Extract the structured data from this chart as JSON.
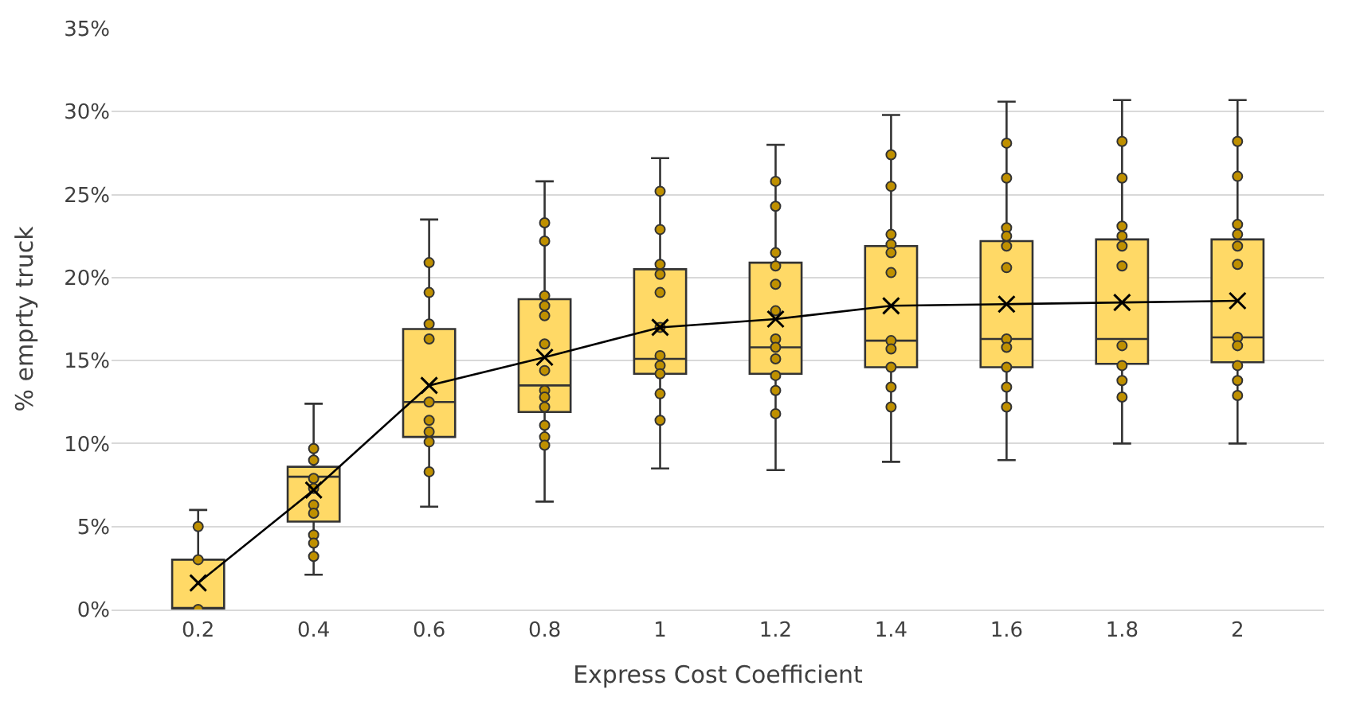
{
  "chart_data": {
    "type": "box",
    "xlabel": "Express Cost Coefficient",
    "ylabel": "% emprty truck",
    "categories": [
      "0.2",
      "0.4",
      "0.6",
      "0.8",
      "1",
      "1.2",
      "1.4",
      "1.6",
      "1.8",
      "2"
    ],
    "color": "#ffd966",
    "boxes": [
      {
        "low": 0,
        "q1": 0,
        "median": 0,
        "q3": 3.0,
        "high": 6.0
      },
      {
        "low": 2.1,
        "q1": 5.3,
        "median": 8.0,
        "q3": 8.6,
        "high": 12.4
      },
      {
        "low": 6.2,
        "q1": 10.4,
        "median": 12.5,
        "q3": 16.9,
        "high": 23.5
      },
      {
        "low": 6.5,
        "q1": 11.9,
        "median": 13.5,
        "q3": 18.7,
        "high": 25.8
      },
      {
        "low": 8.5,
        "q1": 14.2,
        "median": 15.1,
        "q3": 20.5,
        "high": 27.2
      },
      {
        "low": 8.4,
        "q1": 14.2,
        "median": 15.8,
        "q3": 20.9,
        "high": 28.0
      },
      {
        "low": 8.9,
        "q1": 14.6,
        "median": 16.2,
        "q3": 21.9,
        "high": 29.8
      },
      {
        "low": 9.0,
        "q1": 14.6,
        "median": 16.3,
        "q3": 22.2,
        "high": 30.6
      },
      {
        "low": 10.0,
        "q1": 14.8,
        "median": 16.3,
        "q3": 22.3,
        "high": 30.7
      },
      {
        "low": 10.0,
        "q1": 14.9,
        "median": 16.4,
        "q3": 22.3,
        "high": 30.7
      }
    ],
    "series": [
      {
        "type": "scatter",
        "marker": "circle",
        "color": "#bf9000",
        "x": [
          "0.2",
          "0.2",
          "0.2",
          "0.4",
          "0.4",
          "0.4",
          "0.4",
          "0.4",
          "0.4",
          "0.4",
          "0.4",
          "0.4",
          "0.6",
          "0.6",
          "0.6",
          "0.6",
          "0.6",
          "0.6",
          "0.6",
          "0.6",
          "0.6",
          "0.8",
          "0.8",
          "0.8",
          "0.8",
          "0.8",
          "0.8",
          "0.8",
          "0.8",
          "0.8",
          "0.8",
          "0.8",
          "0.8",
          "0.8",
          "1",
          "1",
          "1",
          "1",
          "1",
          "1",
          "1",
          "1",
          "1",
          "1",
          "1",
          "1.2",
          "1.2",
          "1.2",
          "1.2",
          "1.2",
          "1.2",
          "1.2",
          "1.2",
          "1.2",
          "1.2",
          "1.2",
          "1.2",
          "1.4",
          "1.4",
          "1.4",
          "1.4",
          "1.4",
          "1.4",
          "1.4",
          "1.4",
          "1.4",
          "1.4",
          "1.4",
          "1.6",
          "1.6",
          "1.6",
          "1.6",
          "1.6",
          "1.6",
          "1.6",
          "1.6",
          "1.6",
          "1.6",
          "1.6",
          "1.8",
          "1.8",
          "1.8",
          "1.8",
          "1.8",
          "1.8",
          "1.8",
          "1.8",
          "1.8",
          "1.8",
          "2",
          "2",
          "2",
          "2",
          "2",
          "2",
          "2",
          "2",
          "2",
          "2",
          "2"
        ],
        "values": [
          5.0,
          3.0,
          0.0,
          9.7,
          9.0,
          7.9,
          7.3,
          6.3,
          5.8,
          4.5,
          4.0,
          3.2,
          20.9,
          19.1,
          17.2,
          16.3,
          12.5,
          11.4,
          10.7,
          10.1,
          8.3,
          23.3,
          22.2,
          18.9,
          18.3,
          17.7,
          16.0,
          14.4,
          13.2,
          12.8,
          12.2,
          11.1,
          10.4,
          9.9,
          25.2,
          22.9,
          20.8,
          20.2,
          19.1,
          17.0,
          15.3,
          14.7,
          14.2,
          13.0,
          11.4,
          25.8,
          24.3,
          21.5,
          20.7,
          19.6,
          18.0,
          16.3,
          15.8,
          15.1,
          14.1,
          13.2,
          11.8,
          27.4,
          25.5,
          22.6,
          22.0,
          21.5,
          20.3,
          16.2,
          15.7,
          14.6,
          13.4,
          12.2,
          28.1,
          26.0,
          23.0,
          22.5,
          21.9,
          20.6,
          16.3,
          15.8,
          14.6,
          13.4,
          12.2,
          28.2,
          26.0,
          23.1,
          22.5,
          21.9,
          20.7,
          15.9,
          14.7,
          13.8,
          12.8,
          28.2,
          26.1,
          23.2,
          22.6,
          21.9,
          20.8,
          16.4,
          15.9,
          14.7,
          13.8,
          12.9
        ]
      },
      {
        "type": "line",
        "marker": "cross",
        "color": "#000000",
        "values": [
          1.6,
          7.2,
          13.5,
          15.2,
          17.0,
          17.5,
          18.3,
          18.4,
          18.5,
          18.6
        ]
      }
    ],
    "ylim": [
      0,
      35
    ],
    "yticks": [
      {
        "value": 0,
        "label": "0%"
      },
      {
        "value": 5,
        "label": "5%"
      },
      {
        "value": 10,
        "label": "10%"
      },
      {
        "value": 15,
        "label": "15%"
      },
      {
        "value": 20,
        "label": "20%"
      },
      {
        "value": 25,
        "label": "25%"
      },
      {
        "value": 30,
        "label": "30%"
      },
      {
        "value": 35,
        "label": "35%"
      }
    ],
    "grid": "y"
  }
}
